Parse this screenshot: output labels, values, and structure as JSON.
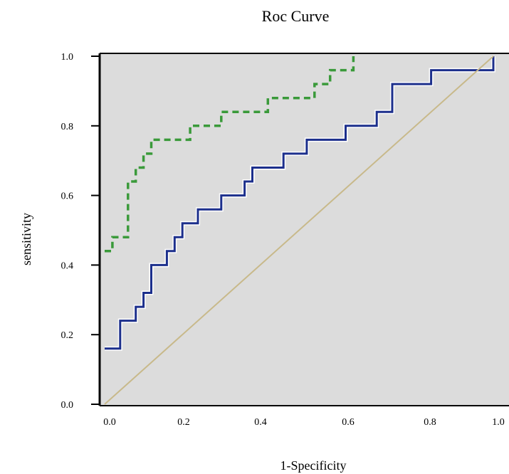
{
  "chart_data": {
    "type": "line",
    "title": "Roc Curve",
    "xlabel": "1-Specificity",
    "ylabel": "sensitivity",
    "xlim": [
      0.0,
      1.0
    ],
    "ylim": [
      0.0,
      1.0
    ],
    "x_ticks": [
      "0.0",
      "0.2",
      "0.4",
      "0.6",
      "0.8",
      "1.0"
    ],
    "y_ticks": [
      "0.0",
      "0.2",
      "0.4",
      "0.6",
      "0.8",
      "1.0"
    ],
    "grid": false,
    "legend": "none",
    "background": "#dcdcdc",
    "series": [
      {
        "style": "step-dashed",
        "color": "#3a9a3a",
        "points": [
          [
            0.0,
            0.44
          ],
          [
            0.02,
            0.44
          ],
          [
            0.02,
            0.48
          ],
          [
            0.06,
            0.48
          ],
          [
            0.06,
            0.64
          ],
          [
            0.08,
            0.64
          ],
          [
            0.08,
            0.68
          ],
          [
            0.1,
            0.68
          ],
          [
            0.1,
            0.72
          ],
          [
            0.12,
            0.72
          ],
          [
            0.12,
            0.76
          ],
          [
            0.22,
            0.76
          ],
          [
            0.22,
            0.8
          ],
          [
            0.3,
            0.8
          ],
          [
            0.3,
            0.84
          ],
          [
            0.42,
            0.84
          ],
          [
            0.42,
            0.88
          ],
          [
            0.54,
            0.88
          ],
          [
            0.54,
            0.92
          ],
          [
            0.58,
            0.92
          ],
          [
            0.58,
            0.96
          ],
          [
            0.64,
            0.96
          ],
          [
            0.64,
            1.0
          ]
        ]
      },
      {
        "style": "step-solid",
        "color": "#1c2f8c",
        "points": [
          [
            0.0,
            0.16
          ],
          [
            0.04,
            0.16
          ],
          [
            0.04,
            0.24
          ],
          [
            0.08,
            0.24
          ],
          [
            0.08,
            0.28
          ],
          [
            0.1,
            0.28
          ],
          [
            0.1,
            0.32
          ],
          [
            0.12,
            0.32
          ],
          [
            0.12,
            0.4
          ],
          [
            0.16,
            0.4
          ],
          [
            0.16,
            0.44
          ],
          [
            0.18,
            0.44
          ],
          [
            0.18,
            0.48
          ],
          [
            0.2,
            0.48
          ],
          [
            0.2,
            0.52
          ],
          [
            0.24,
            0.52
          ],
          [
            0.24,
            0.56
          ],
          [
            0.3,
            0.56
          ],
          [
            0.3,
            0.6
          ],
          [
            0.36,
            0.6
          ],
          [
            0.36,
            0.64
          ],
          [
            0.38,
            0.64
          ],
          [
            0.38,
            0.68
          ],
          [
            0.46,
            0.68
          ],
          [
            0.46,
            0.72
          ],
          [
            0.52,
            0.72
          ],
          [
            0.52,
            0.76
          ],
          [
            0.62,
            0.76
          ],
          [
            0.62,
            0.8
          ],
          [
            0.7,
            0.8
          ],
          [
            0.7,
            0.84
          ],
          [
            0.74,
            0.84
          ],
          [
            0.74,
            0.92
          ],
          [
            0.84,
            0.92
          ],
          [
            0.84,
            0.96
          ],
          [
            1.0,
            0.96
          ],
          [
            1.0,
            1.0
          ]
        ]
      },
      {
        "style": "reference",
        "color": "#c8b98a",
        "points": [
          [
            0.0,
            0.0
          ],
          [
            1.0,
            1.0
          ]
        ]
      }
    ]
  }
}
